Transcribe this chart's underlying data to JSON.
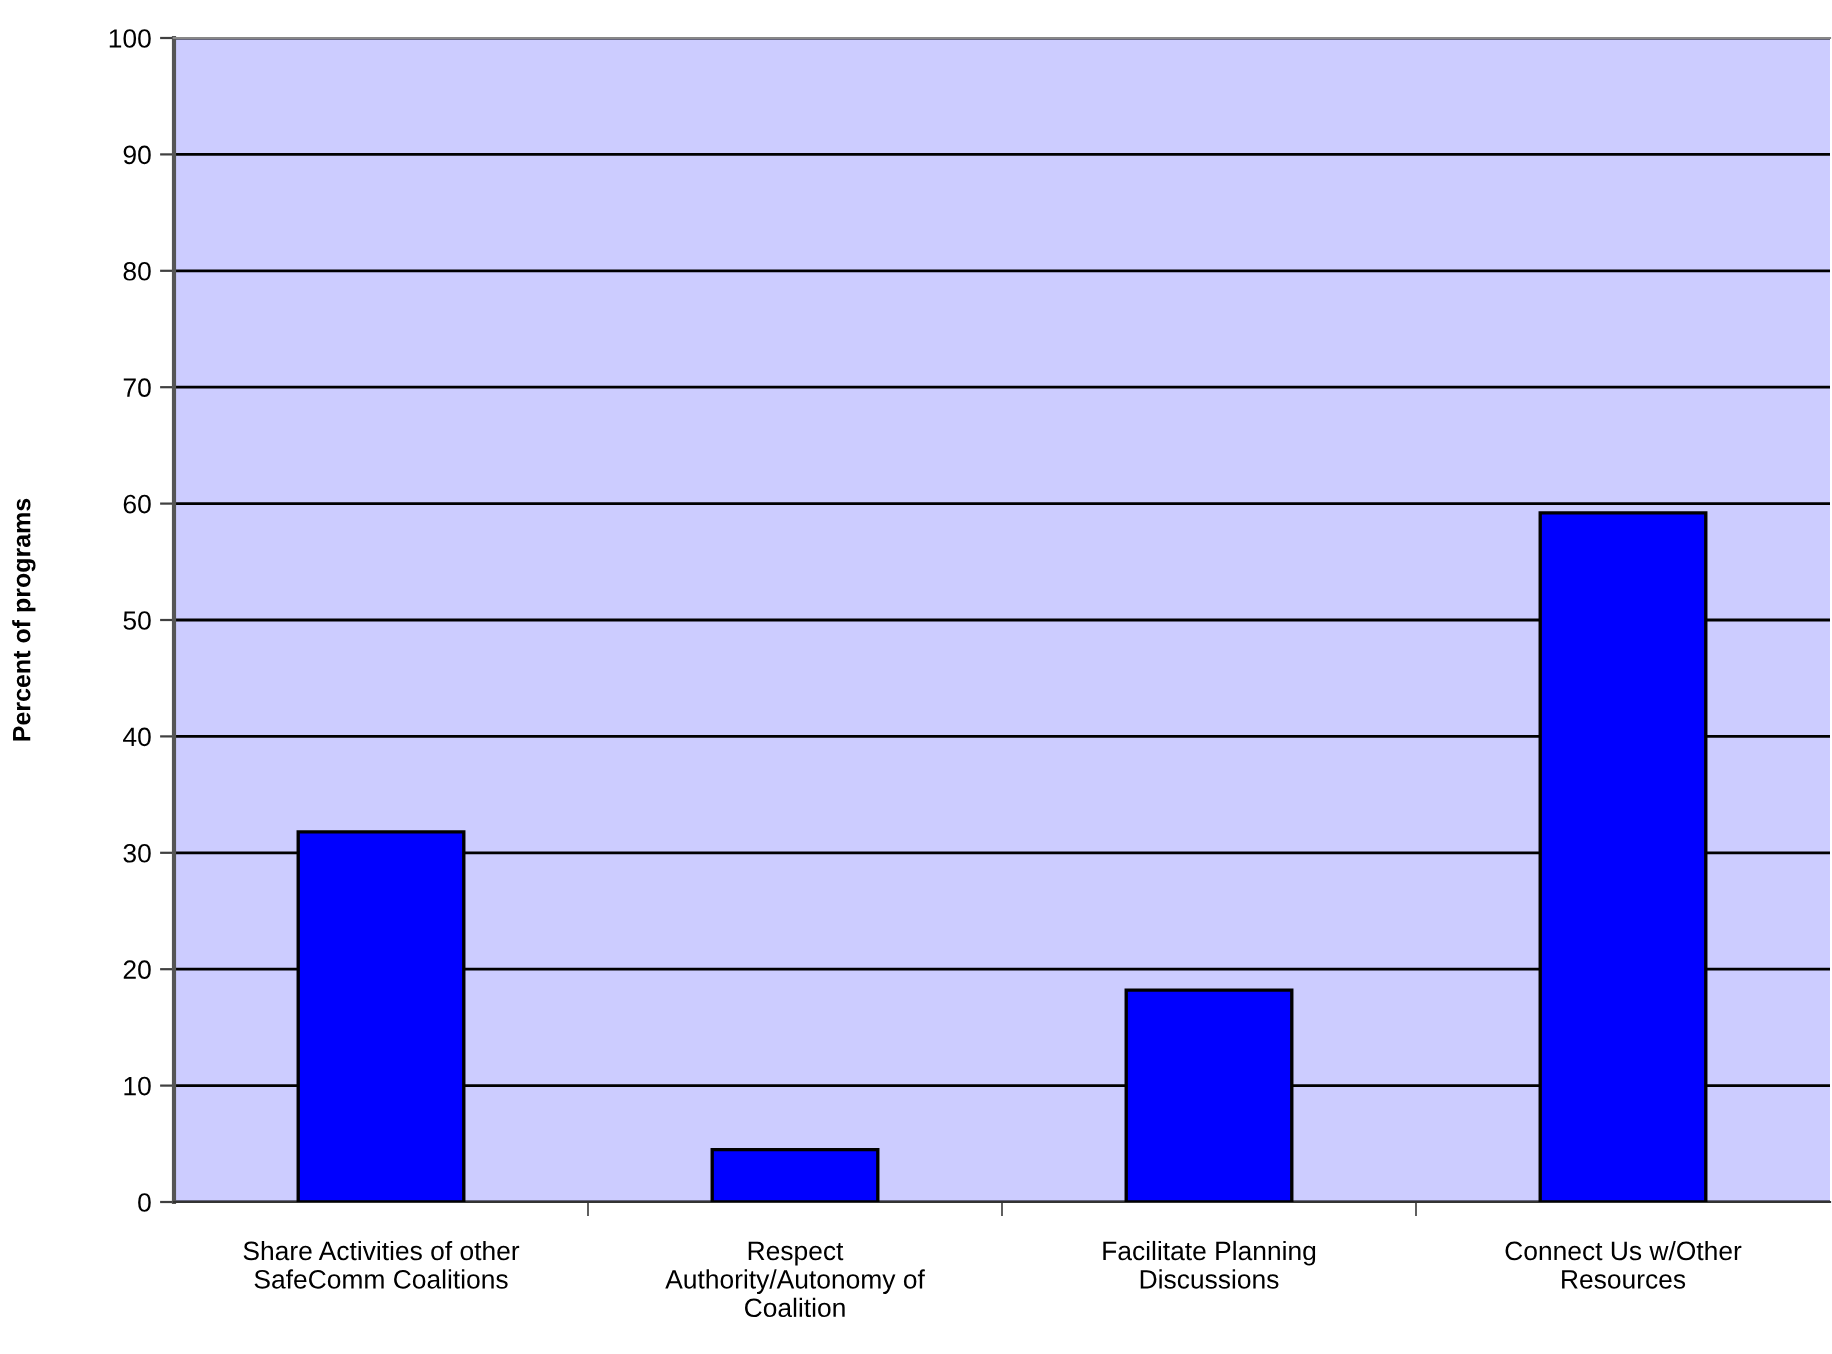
{
  "chart_data": {
    "type": "bar",
    "ylabel": "Percent of programs",
    "categories": [
      "Share Activities of other\nSafeComm Coalitions",
      "Respect\nAuthority/Autonomy of\nCoalition",
      "Facilitate Planning\nDiscussions",
      "Connect Us w/Other\nResources"
    ],
    "values": [
      31.8,
      4.5,
      18.2,
      59.2
    ],
    "color": "#0000ff",
    "ylim": [
      0,
      100
    ],
    "yticks": [
      0,
      10,
      20,
      30,
      40,
      50,
      60,
      70,
      80,
      90,
      100
    ],
    "grid": "y"
  }
}
